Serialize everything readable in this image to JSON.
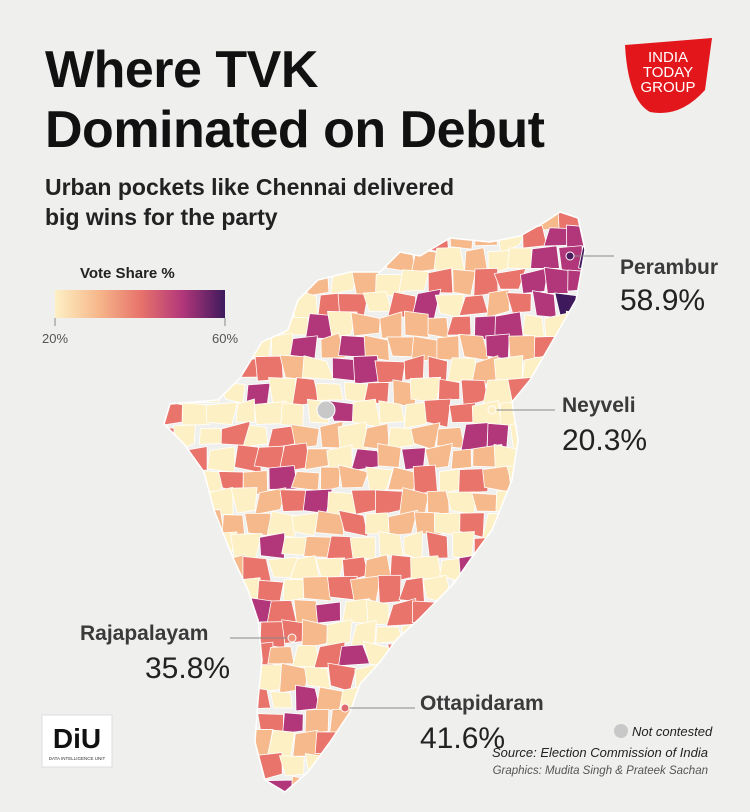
{
  "header": {
    "title_lines": [
      "Where TVK",
      "Dominated on Debut"
    ],
    "subtitle_lines": [
      "Urban pockets like Chennai delivered",
      "big wins for the party"
    ]
  },
  "brand": {
    "lines": [
      "INDIA",
      "TODAY",
      "GROUP"
    ]
  },
  "legend": {
    "title": "Vote Share %",
    "scale": [
      {
        "value": 20,
        "label": "20%"
      },
      {
        "value": 60,
        "label": "60%"
      }
    ],
    "colors": [
      "#fdf0c4",
      "#f6b98c",
      "#e8746b",
      "#b2377a",
      "#3e1a5c"
    ],
    "not_contested": "Not contested",
    "not_contested_color": "#c8c8c8"
  },
  "callouts": [
    {
      "name": "Perambur",
      "value": 58.9,
      "label": "58.9%"
    },
    {
      "name": "Neyveli",
      "value": 20.3,
      "label": "20.3%"
    },
    {
      "name": "Rajapalayam",
      "value": 35.8,
      "label": "35.8%"
    },
    {
      "name": "Ottapidaram",
      "value": 41.6,
      "label": "41.6%"
    }
  ],
  "footer": {
    "source": "Source: Election Commission of India",
    "credits": "Graphics: Mudita Singh & Prateek Sachan",
    "unit_logo": "DiU",
    "unit_name": "DATA INTELLIGENCE UNIT"
  }
}
